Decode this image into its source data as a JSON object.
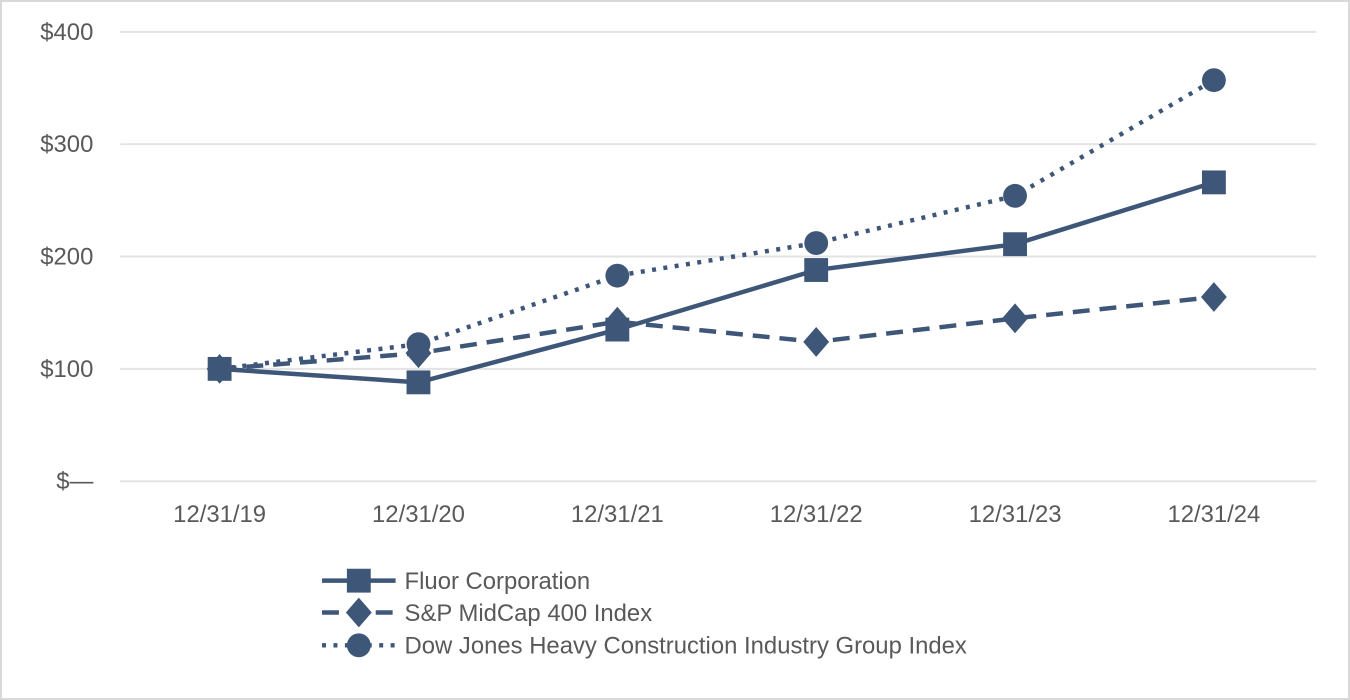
{
  "chart_data": {
    "type": "line",
    "title": "",
    "xlabel": "",
    "ylabel": "",
    "categories": [
      "12/31/19",
      "12/31/20",
      "12/31/21",
      "12/31/22",
      "12/31/23",
      "12/31/24"
    ],
    "series": [
      {
        "name": "Fluor Corporation",
        "marker": "square",
        "line_style": "solid",
        "color": "#3E5778",
        "values": [
          100,
          88,
          135,
          188,
          211,
          266
        ]
      },
      {
        "name": "S&P MidCap 400 Index",
        "marker": "diamond",
        "line_style": "dashed",
        "color": "#3E5778",
        "values": [
          100,
          114,
          142,
          124,
          145,
          164
        ]
      },
      {
        "name": "Dow Jones Heavy Construction Industry Group Index",
        "marker": "circle",
        "line_style": "dotted",
        "color": "#3E5778",
        "values": [
          100,
          122,
          183,
          212,
          254,
          357
        ]
      }
    ],
    "y_ticks": [
      {
        "value": 400,
        "label": "$400"
      },
      {
        "value": 300,
        "label": "$300"
      },
      {
        "value": 200,
        "label": "$200"
      },
      {
        "value": 100,
        "label": "$100"
      },
      {
        "value": 0,
        "label": "$—"
      }
    ],
    "ylim": [
      0,
      400
    ],
    "grid": true,
    "legend_position": "bottom",
    "colors": {
      "series_color": "#3E5778",
      "axis_label_color": "#595959",
      "gridline_color": "#e3e3e3",
      "frame_border_color": "#d9d9d9",
      "background": "#ffffff"
    }
  }
}
